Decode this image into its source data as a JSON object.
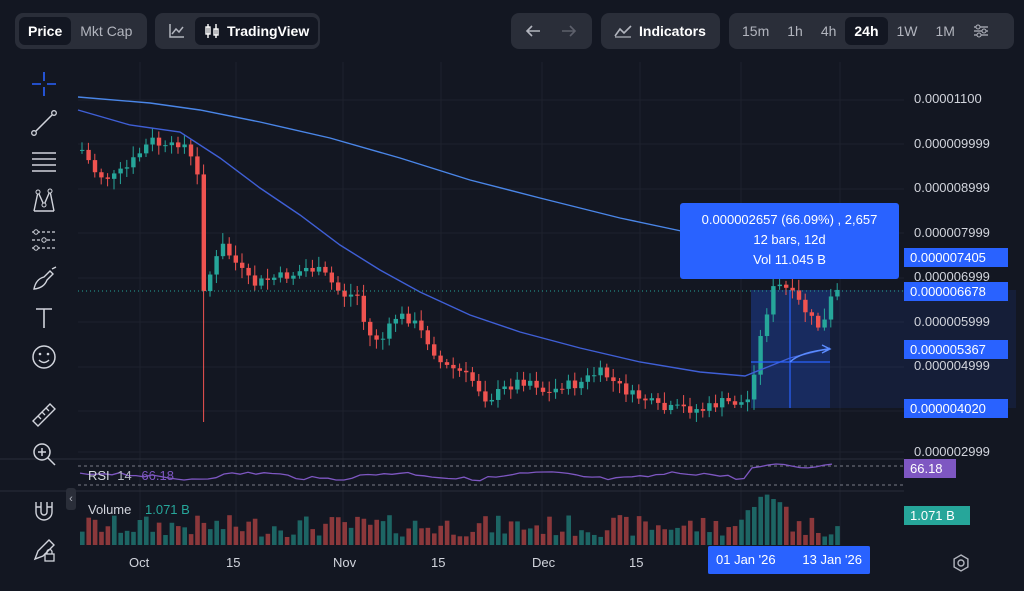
{
  "toolbar": {
    "price_tab": "Price",
    "mktcap_tab": "Mkt Cap",
    "tradingview_label": "TradingView",
    "indicators_label": "Indicators",
    "timeframes": [
      "15m",
      "1h",
      "4h",
      "24h",
      "1W",
      "1M"
    ],
    "active_timeframe": "24h"
  },
  "price_axis": {
    "ticks": [
      "0.00001100",
      "0.000009999",
      "0.000008999",
      "0.000007999",
      "0.000006999",
      "0.000005999",
      "0.000004999",
      "0.000002999"
    ],
    "labels": {
      "upper": "0.000007405",
      "current": "0.000006678",
      "mid": "0.000005367",
      "lower": "0.000004020"
    }
  },
  "time_axis": {
    "ticks": [
      "Oct",
      "15",
      "Nov",
      "15",
      "Dec",
      "15"
    ],
    "selection_start": "01 Jan '26",
    "selection_end": "13 Jan '26"
  },
  "measure_tooltip": {
    "line1": "0.000002657 (66.09%) , 2,657",
    "line2": "12 bars, 12d",
    "line3": "Vol 11.045 B"
  },
  "rsi": {
    "name": "RSI",
    "period": "14",
    "value": "66.18",
    "axis_value": "66.18"
  },
  "volume": {
    "name": "Volume",
    "value": "1.071 B",
    "axis_value": "1.071 B"
  },
  "colors": {
    "background": "#131722",
    "up": "#26a69a",
    "down": "#ef5350",
    "ma_fast": "#3f5fd6",
    "ma_slow": "#4a86e8",
    "accent": "#2962ff",
    "rsi": "#7e57c2"
  },
  "tools": [
    "crosshair-icon",
    "trendline-icon",
    "fib-icon",
    "pattern-icon",
    "prediction-icon",
    "brush-icon",
    "text-icon",
    "emoji-icon",
    "ruler-icon",
    "zoom-icon",
    "magnet-icon",
    "lock-draw-icon"
  ]
}
